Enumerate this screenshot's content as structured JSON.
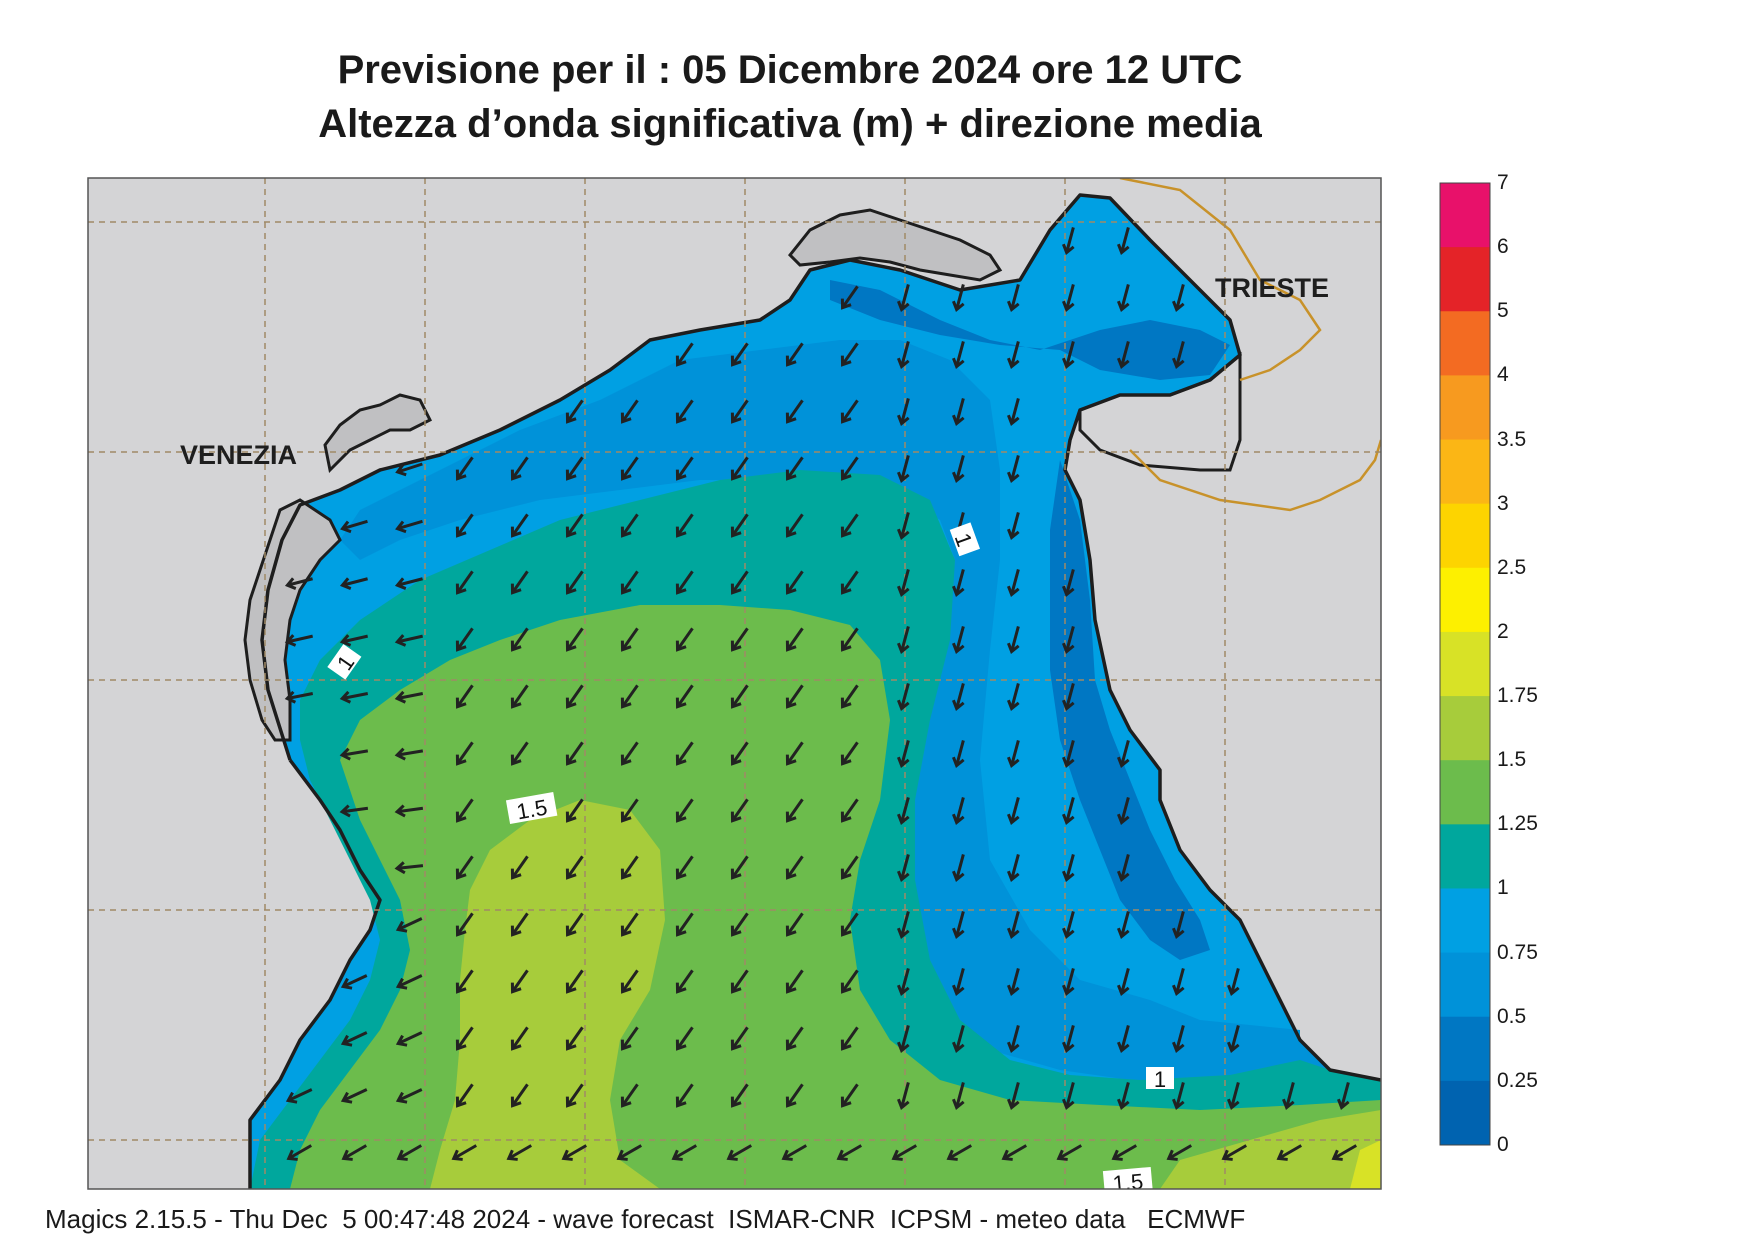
{
  "title": {
    "line1": "Previsione per il  :  05 Dicembre  2024   ore 12 UTC",
    "line2": "Altezza d’onda significativa (m) + direzione media"
  },
  "cities": {
    "venezia": "VENEZIA",
    "trieste": "TRIESTE"
  },
  "colorbar": {
    "labels": [
      "7",
      "6",
      "5",
      "4",
      "3.5",
      "3",
      "2.5",
      "2",
      "1.75",
      "1.5",
      "1.25",
      "1",
      "0.75",
      "0.5",
      "0.25",
      "0"
    ],
    "colors": [
      "#e8116a",
      "#e42328",
      "#f36b22",
      "#f79a1f",
      "#fbb615",
      "#fdd400",
      "#fdf000",
      "#d8e226",
      "#a7cc3b",
      "#6cbc4c",
      "#00a79d",
      "#00a0e3",
      "#0092d9",
      "#0077c3",
      "#0063b0"
    ]
  },
  "contours": {
    "label_1": "1",
    "label_1b": "1",
    "label_1c": "1",
    "label_15": "1.5",
    "label_15b": "1.5"
  },
  "colors": {
    "land": "#d4d4d6",
    "coast": "#1e1e1e",
    "border": "#c8922a",
    "grid": "#a08a66",
    "arrow": "#222222"
  },
  "footer": "Magics 2.15.5 - Thu Dec  5 00:47:48 2024 - wave forecast  ISMAR-CNR  ICPSM - meteo data   ECMWF"
}
